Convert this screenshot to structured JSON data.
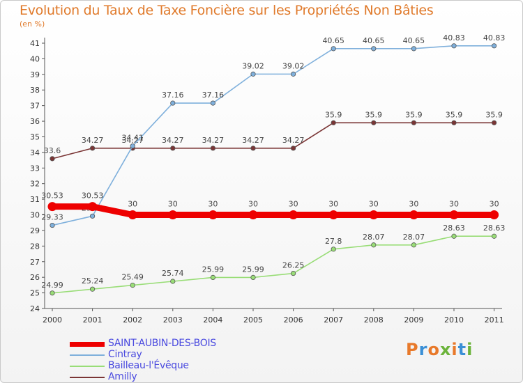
{
  "title": "Evolution du Taux de Taxe Foncière sur les Propriétés Non Bâties",
  "subtitle": "(en %)",
  "logo": {
    "text": "Proxiti",
    "colors": [
      "#e8792a",
      "#3a8fd6",
      "#e8792a",
      "#6bb33a",
      "#e8792a",
      "#3a8fd6",
      "#6bb33a"
    ]
  },
  "chart_data": {
    "type": "line",
    "title": "Evolution du Taux de Taxe Foncière sur les Propriétés Non Bâties",
    "ylabel": "(en %)",
    "xlabel": "",
    "categories": [
      "2000",
      "2001",
      "2002",
      "2003",
      "2004",
      "2005",
      "2006",
      "2007",
      "2008",
      "2009",
      "2010",
      "2011"
    ],
    "ylim": [
      24,
      41
    ],
    "yticks": [
      "24",
      "25",
      "26",
      "27",
      "28",
      "29",
      "30",
      "31",
      "32",
      "33",
      "34",
      "35",
      "36",
      "37",
      "38",
      "39",
      "40",
      "41"
    ],
    "legend_position": "bottom-left",
    "series": [
      {
        "name": "Amilly",
        "color": "#7a3535",
        "style": "thin",
        "values": [
          33.6,
          34.27,
          34.27,
          34.27,
          34.27,
          34.27,
          34.27,
          35.9,
          35.9,
          35.9,
          35.9,
          35.9
        ],
        "labels": [
          "33.6",
          "34.27",
          "34.27",
          "34.27",
          "34.27",
          "34.27",
          "34.27",
          "35.9",
          "35.9",
          "35.9",
          "35.9",
          "35.9"
        ]
      },
      {
        "name": "Bailleau-l'Évêque",
        "color": "#99dd77",
        "style": "thin",
        "values": [
          24.99,
          25.24,
          25.49,
          25.74,
          25.99,
          25.99,
          26.25,
          27.8,
          28.07,
          28.07,
          28.63,
          28.63
        ],
        "labels": [
          "24.99",
          "25.24",
          "25.49",
          "25.74",
          "25.99",
          "25.99",
          "26.25",
          "27.8",
          "28.07",
          "28.07",
          "28.63",
          "28.63"
        ]
      },
      {
        "name": "Cintray",
        "color": "#7fb0dc",
        "style": "thin",
        "values": [
          29.33,
          29.92,
          34.41,
          37.16,
          37.16,
          39.02,
          39.02,
          40.65,
          40.65,
          40.65,
          40.83,
          40.83
        ],
        "labels": [
          "29.33",
          "29.92",
          "34.41",
          "37.16",
          "37.16",
          "39.02",
          "39.02",
          "40.65",
          "40.65",
          "40.65",
          "40.83",
          "40.83"
        ]
      },
      {
        "name": "SAINT-AUBIN-DES-BOIS",
        "color": "#ee0000",
        "style": "thick",
        "values": [
          30.53,
          30.53,
          30,
          30,
          30,
          30,
          30,
          30,
          30,
          30,
          30,
          30
        ],
        "labels": [
          "30.53",
          "30.53",
          "30",
          "30",
          "30",
          "30",
          "30",
          "30",
          "30",
          "30",
          "30",
          "30"
        ]
      }
    ]
  },
  "legend": [
    {
      "name": "SAINT-AUBIN-DES-BOIS",
      "color": "#ee0000",
      "style": "thick"
    },
    {
      "name": "Cintray",
      "color": "#7fb0dc",
      "style": "thin"
    },
    {
      "name": "Bailleau-l'Évêque",
      "color": "#99dd77",
      "style": "thin"
    },
    {
      "name": "Amilly",
      "color": "#7a3535",
      "style": "thin"
    }
  ]
}
